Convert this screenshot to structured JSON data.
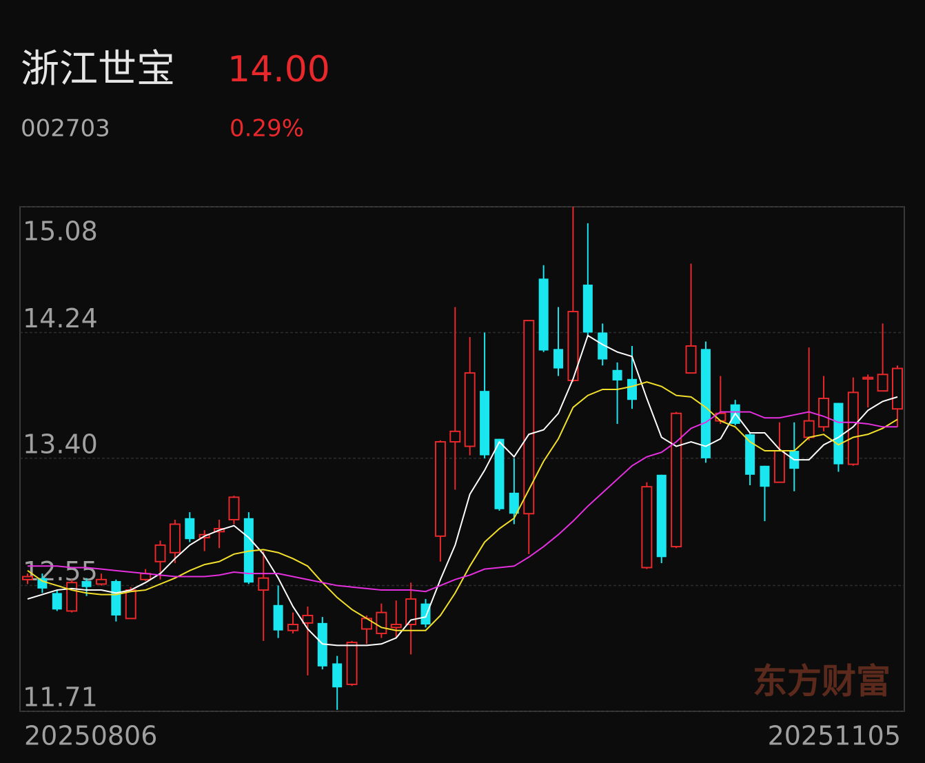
{
  "header": {
    "name": "浙江世宝",
    "price": "14.00",
    "code": "002703",
    "change": "0.29%"
  },
  "chart_data": {
    "type": "candlestick",
    "categories": [
      "20250806",
      null,
      null,
      null,
      null,
      null,
      null,
      null,
      null,
      null,
      null,
      null,
      null,
      null,
      null,
      null,
      null,
      null,
      null,
      null,
      null,
      null,
      null,
      null,
      null,
      null,
      null,
      null,
      null,
      null,
      null,
      null,
      null,
      null,
      null,
      null,
      null,
      null,
      null,
      null,
      null,
      null,
      null,
      null,
      null,
      null,
      null,
      null,
      null,
      null,
      null,
      null,
      null,
      null,
      null,
      null,
      null,
      null,
      null,
      "20251105"
    ],
    "open": [
      12.59,
      12.6,
      12.5,
      12.38,
      12.58,
      12.56,
      12.58,
      12.33,
      12.59,
      12.71,
      12.77,
      13.0,
      12.87,
      12.91,
      12.99,
      13.0,
      12.52,
      12.42,
      12.25,
      12.3,
      12.3,
      12.03,
      11.89,
      12.26,
      12.23,
      12.27,
      12.29,
      12.43,
      12.88,
      13.51,
      13.48,
      13.85,
      13.53,
      13.17,
      13.03,
      14.6,
      14.13,
      13.92,
      14.56,
      14.24,
      13.99,
      13.93,
      12.67,
      13.29,
      12.81,
      13.97,
      14.13,
      13.65,
      13.76,
      13.56,
      13.35,
      13.24,
      13.45,
      13.54,
      13.61,
      13.77,
      13.36,
      13.93,
      13.85,
      13.73
    ],
    "high": [
      12.63,
      12.63,
      12.52,
      12.59,
      12.6,
      12.63,
      12.59,
      12.54,
      12.66,
      12.85,
      12.99,
      13.04,
      12.92,
      12.99,
      13.15,
      13.04,
      12.78,
      12.55,
      12.37,
      12.41,
      12.34,
      12.08,
      12.18,
      12.35,
      12.43,
      12.45,
      12.57,
      12.46,
      13.52,
      14.41,
      14.21,
      14.24,
      13.53,
      13.4,
      14.32,
      14.69,
      14.41,
      15.08,
      14.97,
      14.3,
      14.04,
      14.15,
      13.24,
      13.29,
      13.71,
      14.7,
      14.18,
      13.95,
      13.79,
      13.57,
      13.35,
      13.64,
      13.64,
      14.14,
      13.95,
      13.77,
      13.94,
      13.96,
      14.3,
      14.02
    ],
    "low": [
      12.56,
      12.5,
      12.38,
      12.37,
      12.48,
      12.55,
      12.31,
      12.33,
      12.58,
      12.59,
      12.7,
      12.84,
      12.78,
      12.8,
      12.96,
      12.56,
      12.18,
      12.2,
      12.23,
      11.95,
      11.99,
      11.72,
      11.88,
      12.16,
      12.2,
      12.2,
      12.09,
      12.27,
      12.71,
      13.19,
      13.42,
      13.4,
      13.05,
      12.96,
      12.76,
      14.11,
      13.95,
      13.91,
      14.21,
      14.02,
      13.63,
      13.73,
      12.66,
      12.7,
      12.8,
      13.97,
      13.37,
      13.63,
      13.62,
      13.22,
      12.98,
      13.24,
      13.18,
      13.52,
      13.58,
      13.31,
      13.35,
      13.74,
      13.85,
      13.61
    ],
    "close": [
      12.61,
      12.53,
      12.39,
      12.57,
      12.54,
      12.59,
      12.35,
      12.52,
      12.63,
      12.82,
      12.96,
      12.86,
      12.89,
      12.93,
      13.14,
      12.57,
      12.6,
      12.25,
      12.29,
      12.35,
      12.01,
      11.87,
      12.17,
      12.33,
      12.37,
      12.29,
      12.46,
      12.29,
      13.51,
      13.58,
      13.97,
      13.42,
      13.06,
      13.03,
      14.32,
      14.12,
      14.0,
      14.38,
      14.24,
      14.06,
      13.92,
      13.79,
      13.21,
      12.74,
      13.7,
      14.15,
      13.4,
      13.7,
      13.63,
      13.29,
      13.21,
      13.45,
      13.33,
      13.65,
      13.8,
      13.36,
      13.84,
      13.94,
      13.96,
      14.0
    ],
    "up_color": "#e8282b",
    "down_color": "#19e6ee",
    "lines": [
      {
        "color": "#ffffff",
        "values": [
          12.46,
          12.49,
          12.52,
          12.53,
          12.52,
          12.52,
          12.5,
          12.52,
          12.57,
          12.63,
          12.73,
          12.82,
          12.88,
          12.92,
          12.95,
          12.87,
          12.76,
          12.6,
          12.41,
          12.26,
          12.16,
          12.15,
          12.15,
          12.15,
          12.16,
          12.2,
          12.32,
          12.34,
          12.59,
          12.82,
          13.16,
          13.32,
          13.51,
          13.41,
          13.56,
          13.59,
          13.7,
          13.93,
          14.22,
          14.16,
          14.11,
          14.08,
          13.8,
          13.54,
          13.48,
          13.51,
          13.48,
          13.53,
          13.7,
          13.57,
          13.57,
          13.46,
          13.39,
          13.39,
          13.49,
          13.54,
          13.61,
          13.72,
          13.78,
          13.81
        ]
      },
      {
        "color": "#f2e02a",
        "values": [
          12.65,
          12.58,
          12.55,
          12.52,
          12.5,
          12.49,
          12.49,
          12.51,
          12.52,
          12.56,
          12.6,
          12.65,
          12.69,
          12.71,
          12.76,
          12.78,
          12.79,
          12.77,
          12.73,
          12.68,
          12.57,
          12.47,
          12.39,
          12.33,
          12.27,
          12.25,
          12.25,
          12.25,
          12.35,
          12.5,
          12.68,
          12.84,
          12.93,
          13.0,
          13.19,
          13.38,
          13.53,
          13.74,
          13.82,
          13.86,
          13.86,
          13.88,
          13.91,
          13.88,
          13.82,
          13.81,
          13.74,
          13.65,
          13.61,
          13.51,
          13.45,
          13.45,
          13.45,
          13.54,
          13.56,
          13.49,
          13.54,
          13.56,
          13.6,
          13.66
        ]
      },
      {
        "color": "#e530e0",
        "values": [
          12.68,
          12.68,
          12.68,
          12.67,
          12.67,
          12.66,
          12.65,
          12.64,
          12.63,
          12.62,
          12.61,
          12.61,
          12.61,
          12.62,
          12.64,
          12.63,
          12.63,
          12.63,
          12.61,
          12.59,
          12.57,
          12.55,
          12.54,
          12.53,
          12.52,
          12.52,
          12.52,
          12.51,
          12.55,
          12.59,
          12.62,
          12.66,
          12.67,
          12.68,
          12.74,
          12.81,
          12.89,
          12.98,
          13.08,
          13.17,
          13.26,
          13.35,
          13.41,
          13.44,
          13.51,
          13.6,
          13.64,
          13.71,
          13.71,
          13.71,
          13.67,
          13.67,
          13.69,
          13.71,
          13.68,
          13.64,
          13.64,
          13.63,
          13.61,
          13.61
        ]
      }
    ],
    "ylim": [
      11.71,
      15.08
    ],
    "yticks": [
      15.08,
      14.24,
      {
        "value": 13.4,
        "label": "13.40"
      },
      12.55,
      11.71
    ],
    "grid": true,
    "watermark": "东方财富"
  }
}
